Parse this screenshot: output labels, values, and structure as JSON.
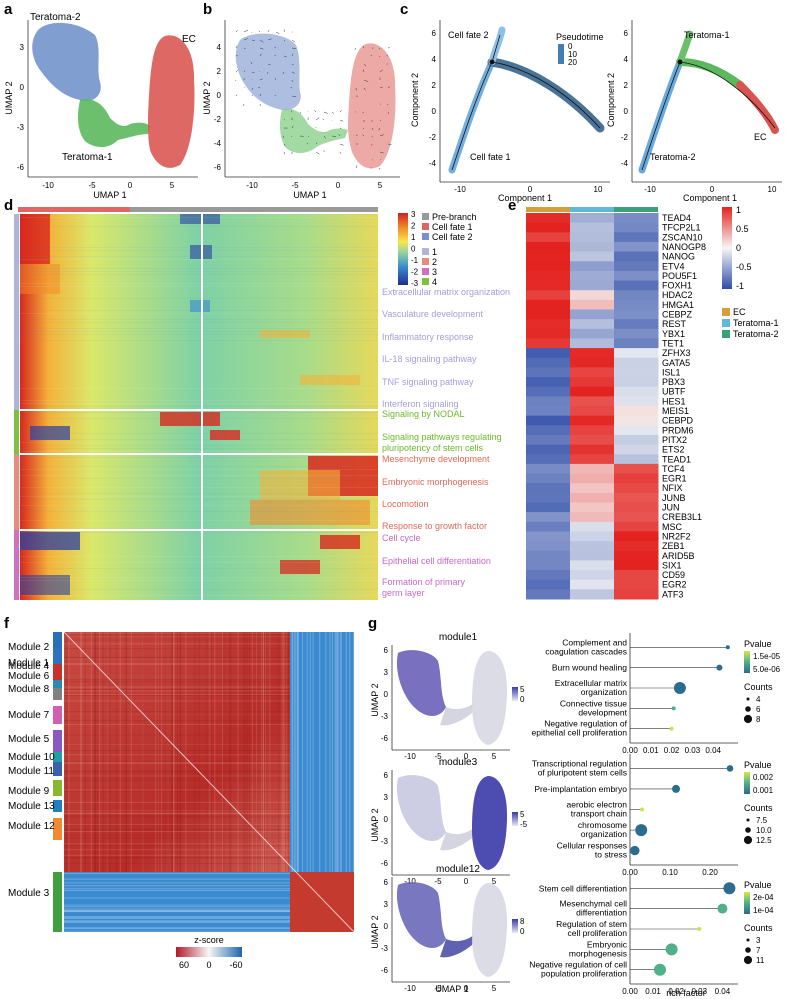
{
  "panels": {
    "a": "a",
    "b": "b",
    "c": "c",
    "d": "d",
    "e": "e",
    "f": "f",
    "g": "g"
  },
  "colors": {
    "teratoma2": "#6a8ec8",
    "teratoma1": "#5cb85c",
    "ec": "#d9534f",
    "heat_low": "#2a3fa0",
    "heat_high": "#d0201f",
    "corr_low": "#2166ac",
    "corr_high": "#b2182b"
  },
  "panel_a": {
    "labels": {
      "t2": "Teratoma-2",
      "t1": "Teratoma-1",
      "ec": "EC"
    },
    "xlabel": "UMAP 1",
    "ylabel": "UMAP 2",
    "xticks": [
      "-10",
      "-5",
      "0",
      "5"
    ],
    "yticks": [
      "3",
      "0",
      "-3",
      "-6"
    ]
  },
  "panel_b": {
    "xlabel": "UMAP 1",
    "ylabel": "UMAP 2",
    "xticks": [
      "-10",
      "-5",
      "0",
      "5"
    ],
    "yticks": [
      "4",
      "2",
      "0",
      "-2",
      "-4",
      "-6"
    ]
  },
  "panel_c1": {
    "fate2": "Cell fate 2",
    "fate1": "Cell fate 1",
    "legend_title": "Pseudotime",
    "legend_vals": [
      "0",
      "10",
      "20"
    ],
    "xlabel": "Component 1",
    "ylabel": "Component 2",
    "xticks": [
      "-10",
      "0",
      "10"
    ],
    "yticks": [
      "6",
      "4",
      "2",
      "0",
      "-2",
      "-4"
    ]
  },
  "panel_c2": {
    "t1": "Teratoma-1",
    "t2": "Teratoma-2",
    "ec": "EC",
    "xlabel": "Component 1",
    "ylabel": "Component 2",
    "xticks": [
      "-10",
      "0",
      "10"
    ],
    "yticks": [
      "6",
      "4",
      "2",
      "0",
      "-2",
      "-4"
    ]
  },
  "panel_d": {
    "legend_scale": [
      "3",
      "2",
      "1",
      "0",
      "-1",
      "-2",
      "-3"
    ],
    "legend_items": [
      {
        "label": "Pre-branch",
        "color": "#999999"
      },
      {
        "label": "Cell fate 1",
        "color": "#e06666"
      },
      {
        "label": "Cell fate 2",
        "color": "#7a8fd0"
      }
    ],
    "cluster_items": [
      {
        "label": "1",
        "color": "#b0b4d8"
      },
      {
        "label": "2",
        "color": "#e78b7f"
      },
      {
        "label": "3",
        "color": "#d070c0"
      },
      {
        "label": "4",
        "color": "#80c040"
      }
    ],
    "pathways": [
      {
        "label": "Extracellular matrix organization",
        "color": "#a39fd8"
      },
      {
        "label": "Vasculature development",
        "color": "#a39fd8"
      },
      {
        "label": "Inflammatory response",
        "color": "#a39fd8"
      },
      {
        "label": "IL-18 signaling pathway",
        "color": "#a39fd8"
      },
      {
        "label": "TNF signaling pathway",
        "color": "#a39fd8"
      },
      {
        "label": "Interferon signaling",
        "color": "#a39fd8"
      },
      {
        "label": "Signaling by NODAL",
        "color": "#6cb82a"
      },
      {
        "label": "Signaling pathways regulating",
        "color": "#6cb82a"
      },
      {
        "label": "pluripotency of stem cells",
        "color": "#6cb82a"
      },
      {
        "label": "Mesenchyme development",
        "color": "#e46a55"
      },
      {
        "label": "Embryonic morphogenesis",
        "color": "#e46a55"
      },
      {
        "label": "Locomotion",
        "color": "#e46a55"
      },
      {
        "label": "Response to growth factor",
        "color": "#e46a55"
      },
      {
        "label": "Cell cycle",
        "color": "#c869c8"
      },
      {
        "label": "Epithelial cell differentiation",
        "color": "#c869c8"
      },
      {
        "label": "Formation of primary",
        "color": "#c869c8"
      },
      {
        "label": "germ layer",
        "color": "#c869c8"
      }
    ]
  },
  "panel_e": {
    "genes": [
      "TEAD4",
      "TFCP2L1",
      "ZSCAN10",
      "NANOGP8",
      "NANOG",
      "ETV4",
      "POU5F1",
      "FOXH1",
      "HDAC2",
      "HMGA1",
      "CEBPZ",
      "REST",
      "YBX1",
      "TET1",
      "ZFHX3",
      "GATA5",
      "ISL1",
      "PBX3",
      "UBTF",
      "HES1",
      "MEIS1",
      "CEBPD",
      "PRDM6",
      "PITX2",
      "ETS2",
      "TEAD1",
      "TCF4",
      "EGR1",
      "NFIX",
      "JUNB",
      "JUN",
      "CREB3L1",
      "MSC",
      "NR2F2",
      "ZEB1",
      "ARID5B",
      "SIX1",
      "CD59",
      "EGR2",
      "ATF3"
    ],
    "columns": [
      {
        "label": "EC",
        "color": "#d4a03c"
      },
      {
        "label": "Teratoma-1",
        "color": "#5fb8d8"
      },
      {
        "label": "Teratoma-2",
        "color": "#3aa07a"
      }
    ],
    "scale": [
      "1",
      "0.5",
      "0",
      "-0.5",
      "-1"
    ]
  },
  "panel_f": {
    "modules": [
      {
        "label": "Module 2",
        "color": "#2a70b8"
      },
      {
        "label": "Module 1",
        "color": "#3070c0"
      },
      {
        "label": "Module 4",
        "color": "#c8302a"
      },
      {
        "label": "Module 6",
        "color": "#2a8ab0"
      },
      {
        "label": "Module 8",
        "color": "#808080"
      },
      {
        "label": "Module 7",
        "color": "#d060b0"
      },
      {
        "label": "Module 5",
        "color": "#8a58c0"
      },
      {
        "label": "Module 10",
        "color": "#20a0a0"
      },
      {
        "label": "Module 11",
        "color": "#3a60b0"
      },
      {
        "label": "Module 9",
        "color": "#88b830"
      },
      {
        "label": "Module 13",
        "color": "#2080c0"
      },
      {
        "label": "Module 12",
        "color": "#f08a30"
      },
      {
        "label": "Module 3",
        "color": "#40a040"
      }
    ],
    "legend_title": "z-score",
    "legend_ticks": [
      "60",
      "0",
      "-60"
    ]
  },
  "panel_g": {
    "umaps": [
      {
        "title": "module1",
        "scale": [
          "5",
          "0"
        ]
      },
      {
        "title": "module3",
        "scale": [
          "5",
          "-5"
        ]
      },
      {
        "title": "module12",
        "scale": [
          "8",
          "0"
        ]
      }
    ],
    "xlabel": "UMAP 1",
    "ylabel": "UMAP 2",
    "xticks": [
      "-10",
      "-5",
      "0",
      "5"
    ],
    "yticks": [
      "6",
      "3",
      "0",
      "-3",
      "-6"
    ],
    "dot_xlabel": "rich factor",
    "dotplots": [
      {
        "terms": [
          {
            "label": "Complement and",
            "label2": "coagulation cascades",
            "x": 0.047,
            "size": 4,
            "p": 1e-06
          },
          {
            "label": "Burn wound healing",
            "label2": "",
            "x": 0.043,
            "size": 5,
            "p": 3e-06
          },
          {
            "label": "Extracellular matrix",
            "label2": "organization",
            "x": 0.024,
            "size": 8,
            "p": 5e-06
          },
          {
            "label": "Connective tissue",
            "label2": "development",
            "x": 0.021,
            "size": 4,
            "p": 8e-06
          },
          {
            "label": "Negative regulation of",
            "label2": "epithelial cell proliferation",
            "x": 0.02,
            "size": 4,
            "p": 1.5e-05
          }
        ],
        "xticks": [
          "0.00",
          "0.01",
          "0.02",
          "0.03",
          "0.04"
        ],
        "xmax": 0.05,
        "pvalue_ticks": [
          "1.5e-05",
          "5.0e-06"
        ],
        "count_ticks": [
          "4",
          "6",
          "8"
        ]
      },
      {
        "terms": [
          {
            "label": "Transcriptional regulation",
            "label2": "of pluripotent stem cells",
            "x": 0.25,
            "size": 8,
            "p": 0.0002
          },
          {
            "label": "Pre-implantation embryo",
            "label2": "",
            "x": 0.115,
            "size": 9,
            "p": 0.0005
          },
          {
            "label": "aerobic electron",
            "label2": "transport chain",
            "x": 0.03,
            "size": 6,
            "p": 0.0025
          },
          {
            "label": "chromosome",
            "label2": "organization",
            "x": 0.028,
            "size": 12,
            "p": 0.0005
          },
          {
            "label": "Cellular responses",
            "label2": "to stress",
            "x": 0.012,
            "size": 10,
            "p": 0.0008
          }
        ],
        "xticks": [
          "0.00",
          "0.10",
          "0.20"
        ],
        "xmax": 0.26,
        "pvalue_ticks": [
          "0.002",
          "0.001"
        ],
        "count_ticks": [
          "7.5",
          "10.0",
          "12.5"
        ]
      },
      {
        "terms": [
          {
            "label": "Stem cell differentiation",
            "label2": "",
            "x": 0.043,
            "size": 11,
            "p": 3e-05
          },
          {
            "label": "Mesenchymal cell",
            "label2": "differentiation",
            "x": 0.04,
            "size": 9,
            "p": 0.0001
          },
          {
            "label": "Regulation of stem",
            "label2": "cell proliferation",
            "x": 0.03,
            "size": 3,
            "p": 0.0002
          },
          {
            "label": "Embryonic",
            "label2": "morphogenesis",
            "x": 0.018,
            "size": 11,
            "p": 0.0001
          },
          {
            "label": "Negative regulation of cell",
            "label2": "population proliferation",
            "x": 0.013,
            "size": 11,
            "p": 0.0001
          }
        ],
        "xticks": [
          "0.00",
          "0.01",
          "0.02",
          "0.03",
          "0.04"
        ],
        "xmax": 0.045,
        "pvalue_ticks": [
          "2e-04",
          "1e-04"
        ],
        "count_ticks": [
          "3",
          "7",
          "11"
        ]
      }
    ],
    "pvalue_title": "Pvalue",
    "count_title": "Counts"
  }
}
